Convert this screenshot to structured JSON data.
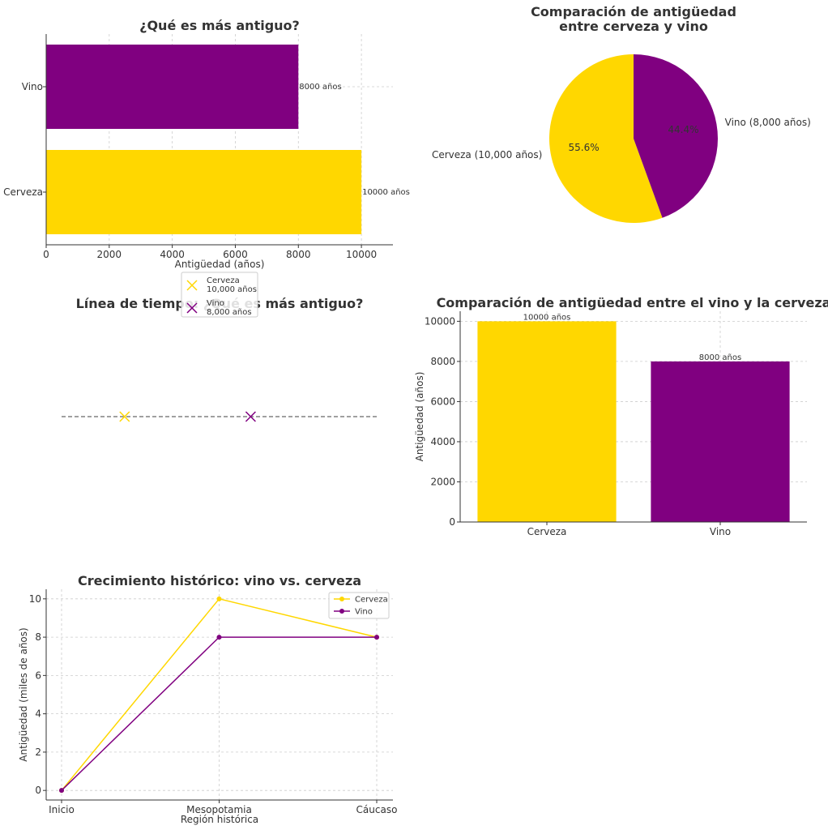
{
  "colors": {
    "cerveza": "#FFD700",
    "vino": "#800080"
  },
  "chart_data": [
    {
      "type": "bar",
      "orientation": "horizontal",
      "title": "¿Qué es más antiguo?",
      "xlabel": "Antigüedad (años)",
      "ylabel": "",
      "categories": [
        "Cerveza",
        "Vino"
      ],
      "values": [
        10000,
        8000
      ],
      "data_labels": [
        "10000 años",
        "8000 años"
      ],
      "xlim": [
        0,
        11000
      ],
      "xticks": [
        "0",
        "2000",
        "4000",
        "6000",
        "8000",
        "10000"
      ],
      "grid": true
    },
    {
      "type": "pie",
      "title": "Comparación de antigüedad\nentre cerveza y vino",
      "labels": [
        "Cerveza (10,000 años)",
        "Vino (8,000 años)"
      ],
      "values": [
        10000,
        8000
      ],
      "percent_labels": [
        "55.6%",
        "44.4%"
      ]
    },
    {
      "type": "scatter",
      "title": "Línea de tiempo: ¿Qué es más antiguo?",
      "points": [
        {
          "name": "Cerveza\n10,000 años",
          "x": -10000,
          "marker": "x"
        },
        {
          "name": "Vino\n8,000 años",
          "x": -8000,
          "marker": "x"
        }
      ],
      "xlim": [
        -11000,
        -6000
      ],
      "axes_visible": false,
      "legend": [
        "Cerveza\n10,000 años",
        "Vino\n8,000 años"
      ],
      "legend_placement": "top"
    },
    {
      "type": "bar",
      "orientation": "vertical",
      "title": "Comparación de antigüedad entre el vino y la cerveza",
      "xlabel": "",
      "ylabel": "Antigüedad (años)",
      "categories": [
        "Cerveza",
        "Vino"
      ],
      "values": [
        10000,
        8000
      ],
      "data_labels": [
        "10000 años",
        "8000 años"
      ],
      "ylim": [
        0,
        10500
      ],
      "yticks": [
        "0",
        "2000",
        "4000",
        "6000",
        "8000",
        "10000"
      ],
      "grid": true
    },
    {
      "type": "line",
      "title": "Crecimiento histórico: vino vs. cerveza",
      "xlabel": "Región histórica",
      "ylabel": "Antigüedad (miles de años)",
      "categories": [
        "Inicio",
        "Mesopotamia",
        "Cáucaso"
      ],
      "series": [
        {
          "name": "Cerveza",
          "values": [
            0,
            10,
            8
          ]
        },
        {
          "name": "Vino",
          "values": [
            0,
            8,
            8
          ]
        }
      ],
      "ylim": [
        -0.5,
        10.5
      ],
      "yticks": [
        "0",
        "2",
        "4",
        "6",
        "8",
        "10"
      ],
      "grid": true,
      "legend_placement": "upper right"
    }
  ]
}
